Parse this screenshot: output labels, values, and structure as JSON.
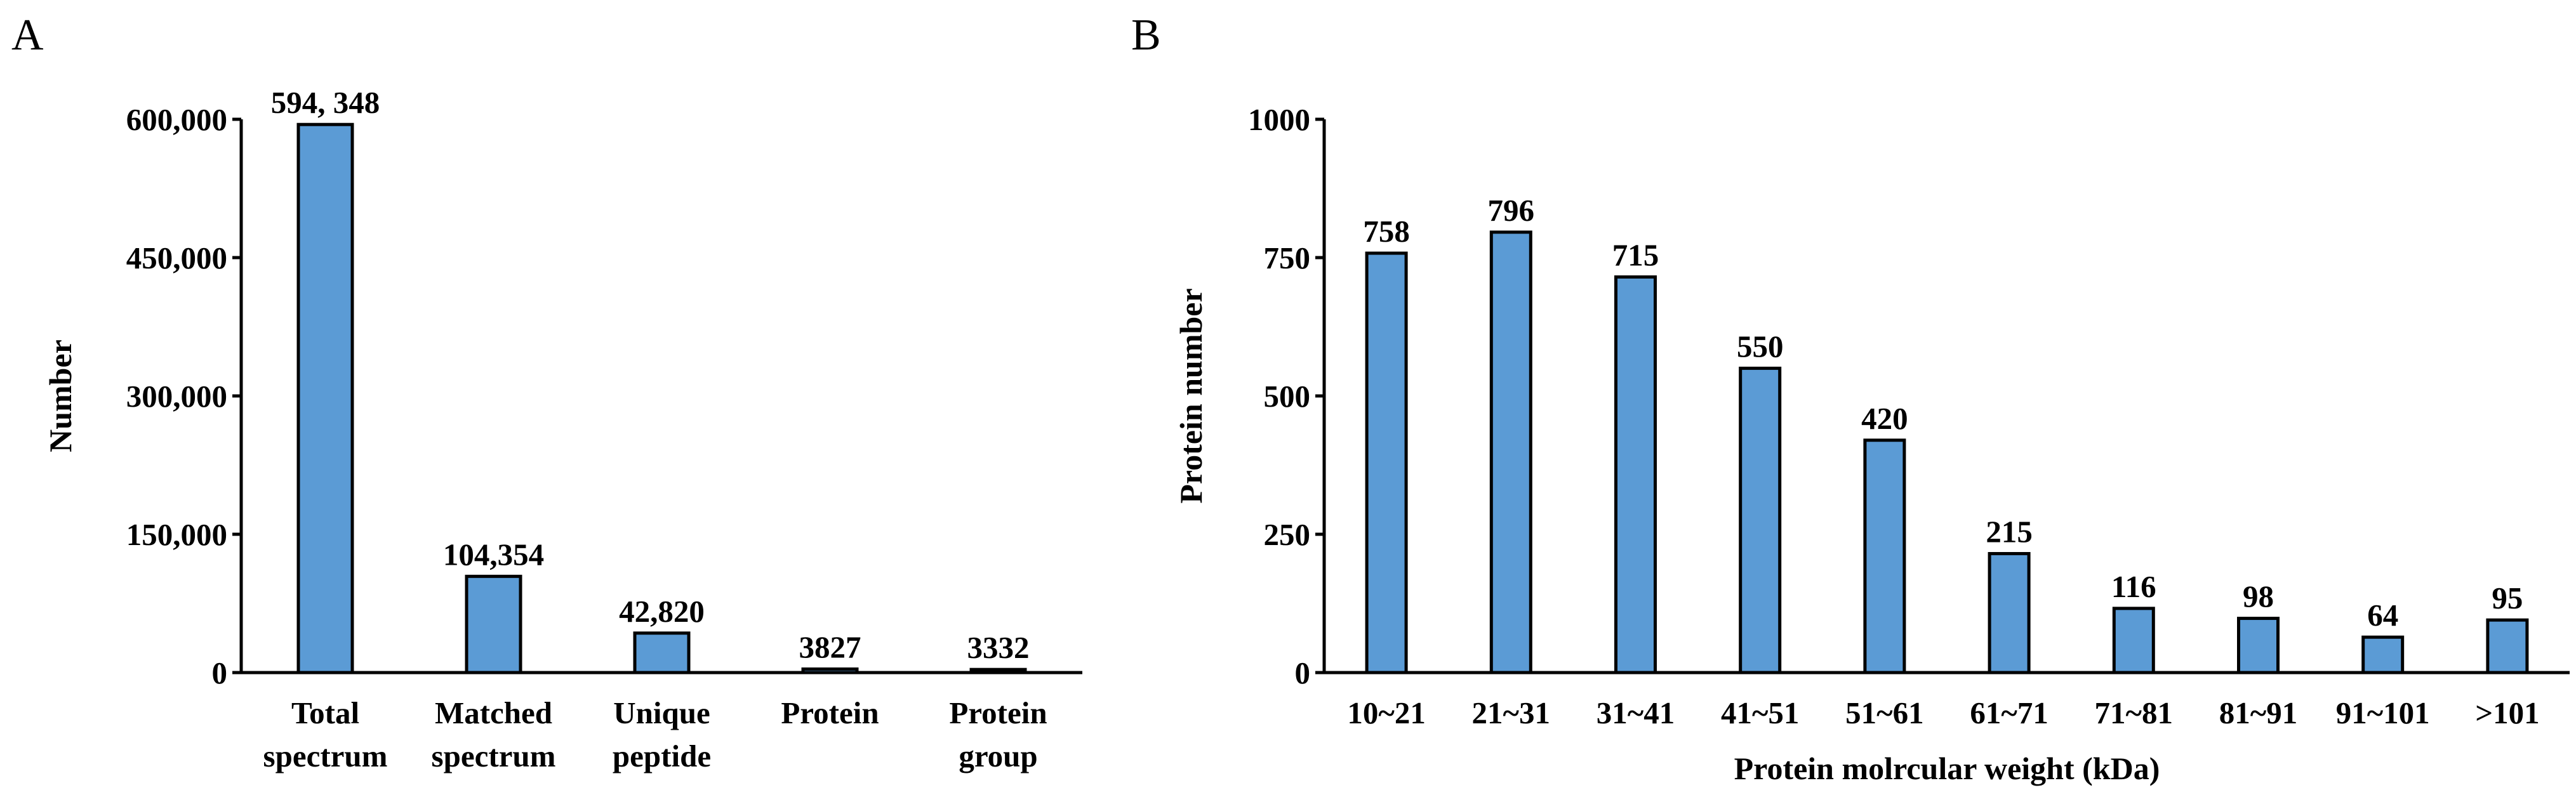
{
  "chart_data": [
    {
      "panel": "A",
      "type": "bar",
      "title": "",
      "xlabel": "",
      "ylabel": "Number",
      "ylim": [
        0,
        600000
      ],
      "yticks": [
        0,
        150000,
        300000,
        450000,
        600000
      ],
      "ytick_labels": [
        "0",
        "150,000",
        "300,000",
        "450,000",
        "600,000"
      ],
      "categories": [
        [
          "Total",
          "spectrum"
        ],
        [
          "Matched",
          "spectrum"
        ],
        [
          "Unique",
          "peptide"
        ],
        [
          "Protein"
        ],
        [
          "Protein",
          "group"
        ]
      ],
      "values": [
        594348,
        104354,
        42820,
        3827,
        3332
      ],
      "value_labels": [
        "594, 348",
        "104,354",
        "42,820",
        "3827",
        "3332"
      ],
      "bar_color": "#5B9BD5",
      "grid": false
    },
    {
      "panel": "B",
      "type": "bar",
      "title": "",
      "xlabel": "Protein molrcular weight (kDa)",
      "ylabel": "Protein number",
      "ylim": [
        0,
        1000
      ],
      "yticks": [
        0,
        250,
        500,
        750,
        1000
      ],
      "ytick_labels": [
        "0",
        "250",
        "500",
        "750",
        "1000"
      ],
      "categories": [
        "10~21",
        "21~31",
        "31~41",
        "41~51",
        "51~61",
        "61~71",
        "71~81",
        "81~91",
        "91~101",
        ">101"
      ],
      "values": [
        758,
        796,
        715,
        550,
        420,
        215,
        116,
        98,
        64,
        95
      ],
      "value_labels": [
        "758",
        "796",
        "715",
        "550",
        "420",
        "215",
        "116",
        "98",
        "64",
        "95"
      ],
      "bar_color": "#5B9BD5",
      "grid": false
    }
  ]
}
